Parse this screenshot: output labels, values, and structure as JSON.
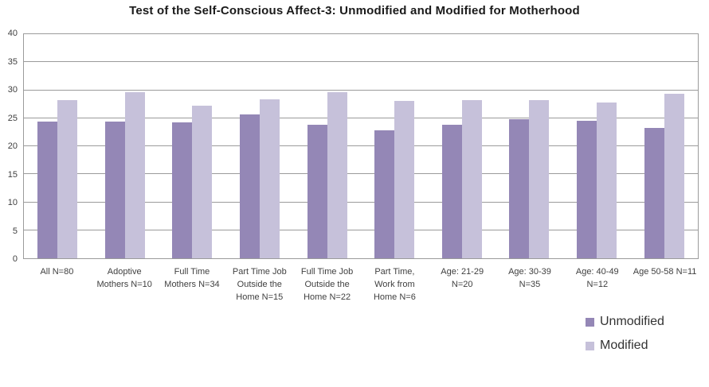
{
  "chart_data": {
    "type": "bar",
    "title": "Test of the Self-Conscious Affect-3: Unmodified and Modified for Motherhood",
    "categories": [
      "All N=80",
      "Adoptive Mothers N=10",
      "Full Time Mothers N=34",
      "Part Time Job Outside the Home N=15",
      "Full Time Job Outside the Home N=22",
      "Part Time, Work from Home N=6",
      "Age: 21-29 N=20",
      "Age: 30-39 N=35",
      "Age: 40-49 N=12",
      "Age 50-58 N=11"
    ],
    "category_label_lines": [
      [
        "All N=80"
      ],
      [
        "Adoptive",
        "Mothers N=10"
      ],
      [
        "Full Time",
        "Mothers N=34"
      ],
      [
        "Part Time Job",
        "Outside the",
        "Home N=15"
      ],
      [
        "Full Time Job",
        "Outside the",
        "Home N=22"
      ],
      [
        "Part Time,",
        "Work from",
        "Home N=6"
      ],
      [
        "Age: 21-29",
        "N=20"
      ],
      [
        "Age: 30-39",
        "N=35"
      ],
      [
        "Age: 40-49",
        "N=12"
      ],
      [
        "Age 50-58 N=11"
      ]
    ],
    "series": [
      {
        "name": "Unmodified",
        "color": "#9487B6",
        "values": [
          24.4,
          24.4,
          24.2,
          25.7,
          23.8,
          22.9,
          23.8,
          24.8,
          24.6,
          23.2
        ]
      },
      {
        "name": "Modified",
        "color": "#C6C1DA",
        "values": [
          28.2,
          29.6,
          27.3,
          28.4,
          29.7,
          28.1,
          28.2,
          28.3,
          27.8,
          29.4
        ]
      }
    ],
    "xlabel": "",
    "ylabel": "",
    "ylim": [
      0,
      40
    ],
    "yticks": [
      0,
      5,
      10,
      15,
      20,
      25,
      30,
      35,
      40
    ],
    "grid": true,
    "legend_position": "bottom-right"
  },
  "style_colors": {
    "background": "#FFFFFF",
    "gridline": "#9B9B9B",
    "axis_text": "#3F3F3F",
    "title_text": "#1A1A1A",
    "legend_text": "#333333"
  }
}
